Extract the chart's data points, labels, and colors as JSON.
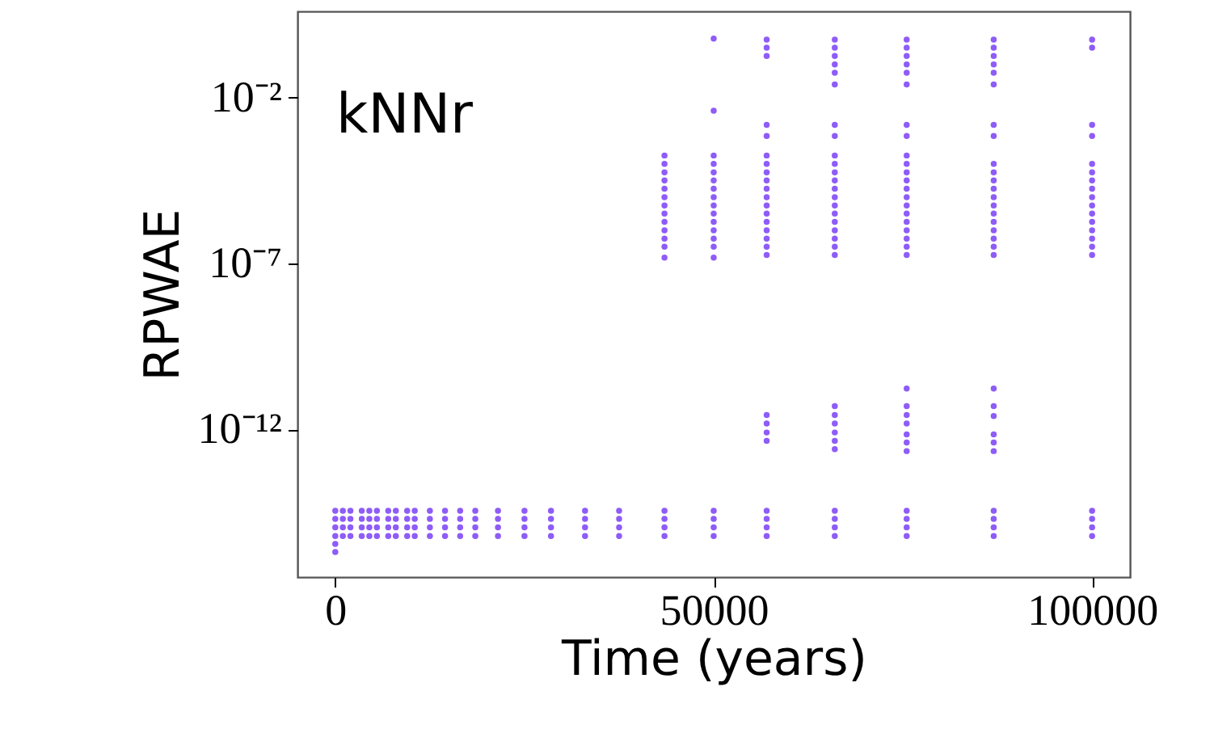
{
  "chart_data": {
    "type": "scatter",
    "xlabel": "Time (years)",
    "ylabel": "RPWAE",
    "log": "y",
    "grid": false,
    "marker": "circle",
    "xlim": [
      -5000,
      105000
    ],
    "xticks": [
      0,
      50000,
      100000
    ],
    "ylim": [
      3.5e-17,
      4
    ],
    "yticks": [
      {
        "value": 0.01,
        "label": "10⁻²"
      },
      {
        "value": 1e-07,
        "label": "10⁻⁷"
      },
      {
        "value": 1e-12,
        "label": "10⁻¹²"
      }
    ],
    "annotations": [
      "kNNr"
    ],
    "series": [
      {
        "color": "#8e5cf7",
        "x": [
          0,
          1000,
          2000,
          3500,
          4500,
          5500,
          7000,
          8000,
          9500,
          10500,
          12500,
          14500,
          16500,
          18500,
          21500,
          25000,
          28500,
          33000,
          37500,
          43500,
          50000,
          57000,
          66000,
          75500,
          87000,
          100000
        ],
        "values": [
          3.5e-15,
          3.5e-15,
          3.5e-15,
          3.5e-15,
          3.5e-15,
          3.5e-15,
          3.5e-15,
          3.5e-15,
          3.5e-15,
          3.5e-15,
          3.5e-15,
          3.5e-15,
          3.5e-15,
          3.5e-15,
          3.5e-15,
          3.5e-15,
          3.5e-15,
          3.5e-15,
          3.5e-15,
          3.5e-15,
          3.5e-15,
          3.5e-15,
          3.5e-15,
          3.5e-15,
          3.5e-15,
          3.5e-15
        ]
      },
      {
        "color": "#8e5cf7",
        "x": [
          0,
          1000,
          2000,
          3500,
          4500,
          5500,
          7000,
          8000,
          9500,
          10500,
          12500,
          14500,
          16500,
          18500,
          21500,
          25000,
          28500,
          33000,
          37500,
          43500,
          50000,
          57000,
          66000,
          75500,
          87000,
          100000
        ],
        "values": [
          2e-15,
          2e-15,
          2e-15,
          2e-15,
          2e-15,
          2e-15,
          2e-15,
          2e-15,
          2e-15,
          2e-15,
          2e-15,
          2e-15,
          2e-15,
          2e-15,
          2e-15,
          2e-15,
          2e-15,
          2e-15,
          2e-15,
          2e-15,
          2e-15,
          2e-15,
          2e-15,
          2e-15,
          2e-15,
          2e-15
        ]
      },
      {
        "color": "#8e5cf7",
        "x": [
          0,
          1000,
          2000,
          3500,
          4500,
          5500,
          7000,
          8000,
          9500,
          10500,
          12500,
          14500,
          16500,
          18500,
          21500,
          25000,
          28500,
          33000,
          37500,
          43500,
          50000,
          57000,
          66000,
          75500,
          87000,
          100000
        ],
        "values": [
          1.1e-15,
          1.1e-15,
          1.1e-15,
          1.1e-15,
          1.1e-15,
          1.1e-15,
          1.1e-15,
          1.1e-15,
          1.1e-15,
          1.1e-15,
          1.1e-15,
          1.1e-15,
          1.1e-15,
          1.1e-15,
          1.1e-15,
          1.1e-15,
          1.1e-15,
          1.1e-15,
          1.1e-15,
          1.1e-15,
          1.1e-15,
          1.1e-15,
          1.1e-15,
          1.1e-15,
          1.1e-15,
          1.1e-15
        ]
      },
      {
        "color": "#8e5cf7",
        "x": [
          0,
          1000,
          2000,
          3500,
          4500,
          5500,
          7000,
          8000,
          9500,
          10500,
          12500,
          14500,
          16500,
          18500,
          21500,
          25000,
          28500,
          33000,
          37500,
          43500,
          50000,
          57000,
          66000,
          75500,
          87000,
          100000
        ],
        "values": [
          6e-16,
          6e-16,
          6e-16,
          6e-16,
          6e-16,
          6e-16,
          6e-16,
          6e-16,
          6e-16,
          6e-16,
          6e-16,
          6e-16,
          6e-16,
          6e-16,
          6e-16,
          6e-16,
          6e-16,
          6e-16,
          6e-16,
          6e-16,
          6e-16,
          6e-16,
          6e-16,
          6e-16,
          6e-16,
          6e-16
        ]
      },
      {
        "color": "#8e5cf7",
        "x": [
          0,
          0
        ],
        "values": [
          3.5e-16,
          2e-16
        ]
      },
      {
        "color": "#8e5cf7",
        "x": [
          43500,
          43500,
          43500,
          43500,
          43500,
          43500,
          43500,
          43500,
          43500,
          43500,
          43500,
          43500,
          43500
        ],
        "values": [
          0.00018,
          0.0001,
          5.6e-05,
          3.2e-05,
          1.8e-05,
          1e-05,
          5.6e-06,
          3.2e-06,
          1.8e-06,
          1e-06,
          5.6e-07,
          3.2e-07,
          1.5e-07
        ]
      },
      {
        "color": "#8e5cf7",
        "x": [
          50000,
          50000,
          50000,
          50000,
          50000,
          50000,
          50000,
          50000,
          50000,
          50000,
          50000,
          50000,
          50000,
          50000,
          50000
        ],
        "values": [
          0.6,
          0.004,
          0.00018,
          0.0001,
          5.6e-05,
          3.2e-05,
          1.8e-05,
          1e-05,
          5.6e-06,
          3.2e-06,
          1.8e-06,
          1e-06,
          5.6e-07,
          3.2e-07,
          1.5e-07
        ]
      },
      {
        "color": "#8e5cf7",
        "x": [
          57000,
          57000,
          57000,
          57000,
          57000,
          57000,
          57000,
          57000,
          57000,
          57000,
          57000,
          57000,
          57000,
          57000,
          57000,
          57000,
          57000,
          57000,
          57000,
          57000,
          57000,
          57000
        ],
        "values": [
          0.56,
          0.32,
          0.18,
          0.0015,
          0.0007,
          0.00018,
          0.0001,
          5.6e-05,
          3.2e-05,
          1.8e-05,
          1e-05,
          5.6e-06,
          3.2e-06,
          1.8e-06,
          1e-06,
          5.6e-07,
          3.2e-07,
          1.8e-07,
          2.7e-12,
          1.5e-12,
          8e-13,
          4.5e-13
        ]
      },
      {
        "color": "#8e5cf7",
        "x": [
          66000,
          66000,
          66000,
          66000,
          66000,
          66000,
          66000,
          66000,
          66000,
          66000,
          66000,
          66000,
          66000,
          66000,
          66000,
          66000,
          66000,
          66000,
          66000,
          66000,
          66000,
          66000,
          66000,
          66000,
          66000,
          66000,
          66000
        ],
        "values": [
          0.56,
          0.32,
          0.18,
          0.1,
          0.056,
          0.025,
          0.0015,
          0.0007,
          0.00018,
          0.0001,
          5.6e-05,
          3.2e-05,
          1.8e-05,
          1e-05,
          5.6e-06,
          3.2e-06,
          1.8e-06,
          1e-06,
          5.6e-07,
          3.2e-07,
          1.8e-07,
          5e-12,
          2.7e-12,
          1.5e-12,
          8e-13,
          4.5e-13,
          2.5e-13
        ]
      },
      {
        "color": "#8e5cf7",
        "x": [
          75500,
          75500,
          75500,
          75500,
          75500,
          75500,
          75500,
          75500,
          75500,
          75500,
          75500,
          75500,
          75500,
          75500,
          75500,
          75500,
          75500,
          75500,
          75500,
          75500,
          75500,
          75500,
          75500,
          75500,
          75500,
          75500,
          75500,
          75500
        ],
        "values": [
          0.56,
          0.32,
          0.18,
          0.1,
          0.056,
          0.025,
          0.0015,
          0.0007,
          0.00018,
          0.0001,
          5.6e-05,
          3.2e-05,
          1.8e-05,
          1e-05,
          5.6e-06,
          3.2e-06,
          1.8e-06,
          1e-06,
          5.6e-07,
          3.2e-07,
          1.8e-07,
          1.7e-11,
          5e-12,
          2.7e-12,
          1.5e-12,
          7e-13,
          4e-13,
          2.2e-13
        ]
      },
      {
        "color": "#8e5cf7",
        "x": [
          87000,
          87000,
          87000,
          87000,
          87000,
          87000,
          87000,
          87000,
          87000,
          87000,
          87000,
          87000,
          87000,
          87000,
          87000,
          87000,
          87000,
          87000,
          87000,
          87000,
          87000,
          87000,
          87000,
          87000,
          87000,
          87000
        ],
        "values": [
          0.56,
          0.32,
          0.18,
          0.1,
          0.056,
          0.025,
          0.0015,
          0.0007,
          0.0001,
          5.6e-05,
          3.2e-05,
          1.8e-05,
          1e-05,
          5.6e-06,
          3.2e-06,
          1.8e-06,
          1e-06,
          5.6e-07,
          3.2e-07,
          1.8e-07,
          1.7e-11,
          5e-12,
          2.5e-12,
          7e-13,
          4e-13,
          2.2e-13
        ]
      },
      {
        "color": "#8e5cf7",
        "x": [
          100000,
          100000,
          100000,
          100000,
          100000,
          100000,
          100000,
          100000,
          100000,
          100000,
          100000,
          100000,
          100000,
          100000,
          100000,
          100000
        ],
        "values": [
          0.56,
          0.32,
          0.0015,
          0.0007,
          0.0001,
          5.6e-05,
          3.2e-05,
          1.8e-05,
          1e-05,
          5.6e-06,
          3.2e-06,
          1.8e-06,
          1e-06,
          5.6e-07,
          3.2e-07,
          1.8e-07
        ]
      }
    ]
  }
}
